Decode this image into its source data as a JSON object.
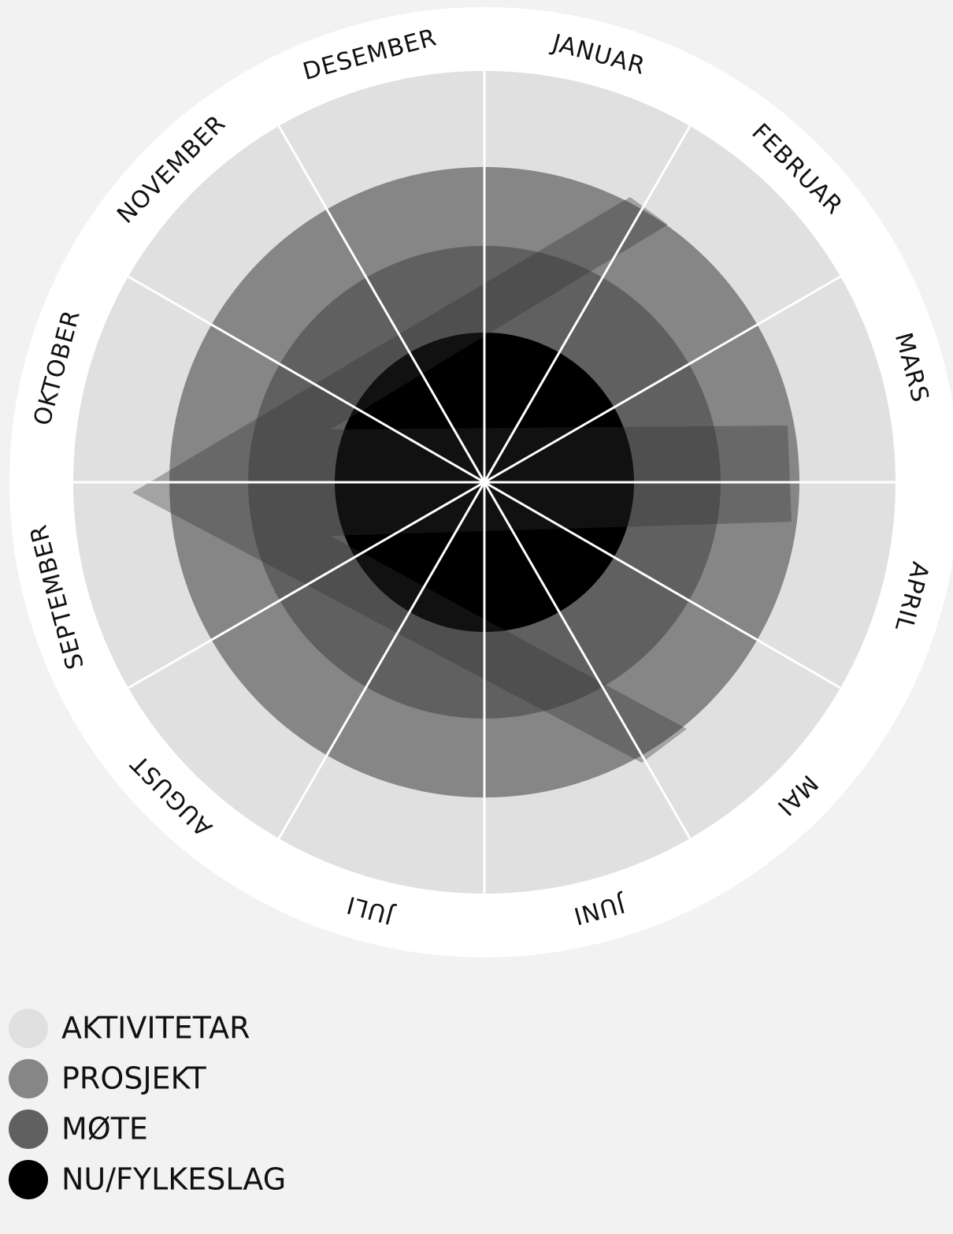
{
  "months": [
    "JANUAR",
    "FEBRUAR",
    "MARS",
    "APRIL",
    "MAI",
    "JUNI",
    "JULI",
    "AUGUST",
    "SEPTEMBER",
    "OKTOBER",
    "NOVEMBER",
    "DESEMBER"
  ],
  "legend": [
    {
      "label": "AKTIVITETAR",
      "color": "#e0e0e0"
    },
    {
      "label": "PROSJEKT",
      "color": "#868686"
    },
    {
      "label": "MØTE",
      "color": "#606060"
    },
    {
      "label": "NU/FYLKESLAG",
      "color": "#000000"
    }
  ]
}
